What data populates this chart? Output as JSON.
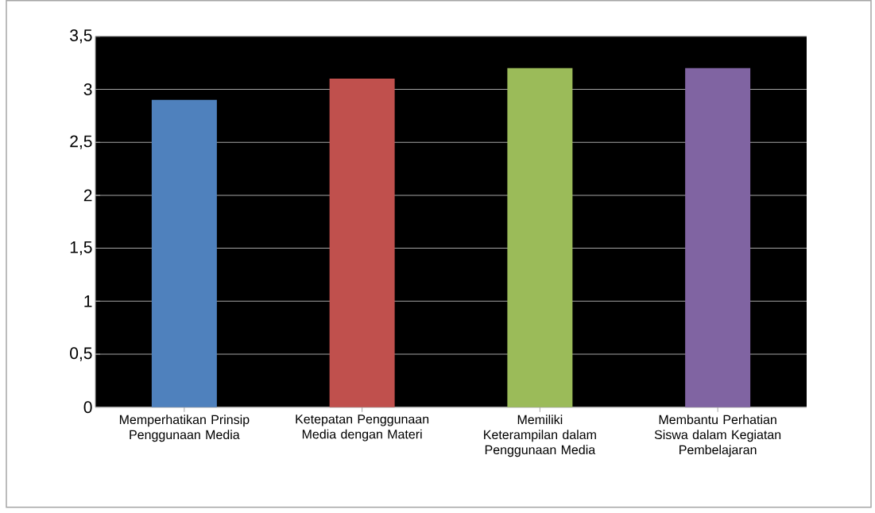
{
  "chart_data": {
    "type": "bar",
    "categories": [
      "Memperhatikan Prinsip Penggunaan Media",
      "Ketepatan Penggunaan Media dengan Materi",
      "Memiliki Keterampilan dalam Penggunaan Media",
      "Membantu Perhatian Siswa dalam Kegiatan Pembelajaran"
    ],
    "values": [
      2.9,
      3.1,
      3.2,
      3.2
    ],
    "colors": [
      "#4f81bd",
      "#c0504d",
      "#9bbb59",
      "#8064a2"
    ],
    "ylim": [
      0,
      3.5
    ],
    "yticks": [
      {
        "value": 0,
        "label": "0"
      },
      {
        "value": 0.5,
        "label": "0,5"
      },
      {
        "value": 1,
        "label": "1"
      },
      {
        "value": 1.5,
        "label": "1,5"
      },
      {
        "value": 2,
        "label": "2"
      },
      {
        "value": 2.5,
        "label": "2,5"
      },
      {
        "value": 3,
        "label": "3"
      },
      {
        "value": 3.5,
        "label": "3,5"
      }
    ],
    "grid": "y"
  }
}
